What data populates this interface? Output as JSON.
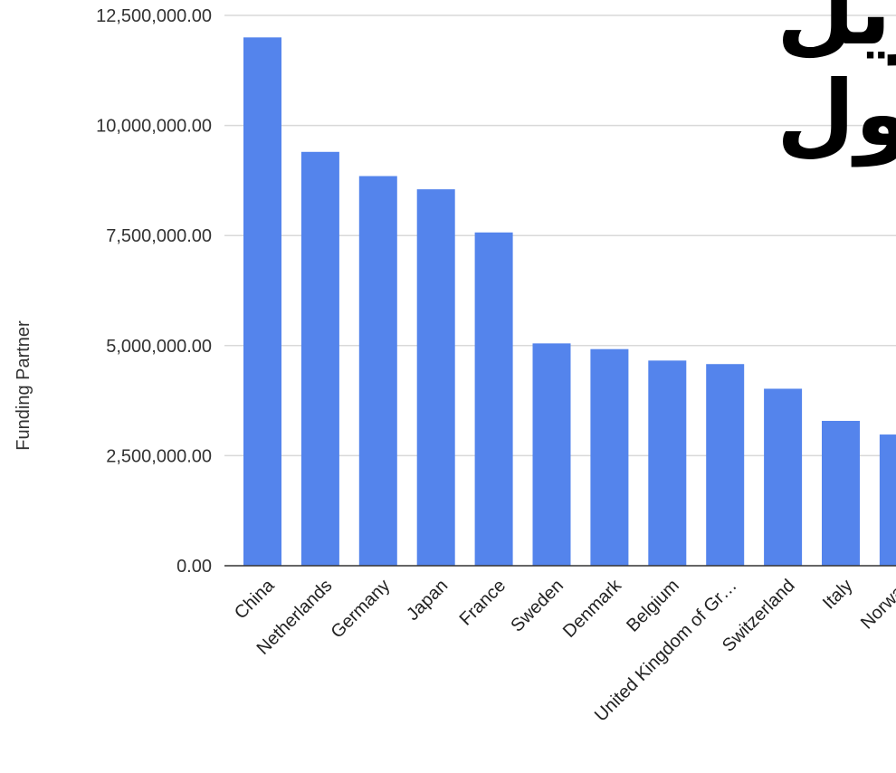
{
  "chart_data": {
    "type": "bar",
    "title": "تمويل الدول",
    "title_lines": [
      "تمويل",
      "الدول"
    ],
    "ylabel": "Funding Partner",
    "xlabel": "",
    "ylim": [
      0,
      12500000
    ],
    "y_ticks": [
      {
        "value": 0,
        "label": "0.00"
      },
      {
        "value": 2500000,
        "label": "2,500,000.00"
      },
      {
        "value": 5000000,
        "label": "5,000,000.00"
      },
      {
        "value": 7500000,
        "label": "7,500,000.00"
      },
      {
        "value": 10000000,
        "label": "10,000,000.00"
      },
      {
        "value": 12500000,
        "label": "12,500,000.00"
      }
    ],
    "categories": [
      "China",
      "Netherlands",
      "Germany",
      "Japan",
      "France",
      "Sweden",
      "Denmark",
      "Belgium",
      "United Kingdom of Gr…",
      "Switzerland",
      "Italy",
      "Norway"
    ],
    "values": [
      12000000,
      9400000,
      8850000,
      8550000,
      7570000,
      5050000,
      4920000,
      4660000,
      4580000,
      4020000,
      3290000,
      2980000
    ],
    "bar_color": "#5484ec",
    "grid": true,
    "legend": "none"
  }
}
